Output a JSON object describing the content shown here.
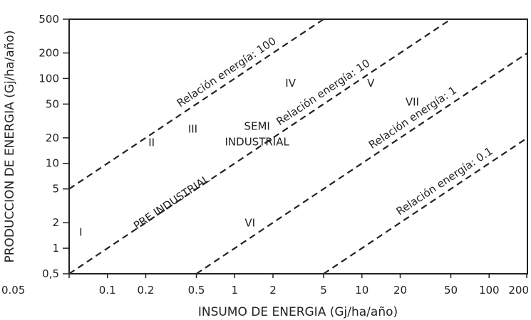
{
  "chart_data": {
    "type": "line",
    "xlabel": "INSUMO DE ENERGIA (Gj/ha/año)",
    "ylabel": "PRODUCCION DE ENERGIA (Gj/ha/año)",
    "x_scale": "log",
    "y_scale": "log",
    "xlim": [
      0.05,
      200
    ],
    "ylim": [
      0.5,
      500
    ],
    "x_ticks": [
      0.05,
      0.1,
      0.2,
      0.5,
      1,
      2,
      5,
      10,
      20,
      50,
      100,
      200
    ],
    "x_tick_labels": [
      "0.05",
      "0.1",
      "0.2",
      "0.5",
      "1",
      "2",
      "5",
      "10",
      "20",
      "50",
      "100",
      "200"
    ],
    "y_ticks": [
      0.5,
      1,
      2,
      5,
      10,
      20,
      50,
      100,
      200,
      500
    ],
    "y_tick_labels": [
      "0,5",
      "1",
      "2",
      "5",
      "10",
      "20",
      "50",
      "100",
      "200",
      "500"
    ],
    "grid": false,
    "series": [
      {
        "name": "Relación energía: 100",
        "ratio": 100,
        "style": "dashed",
        "x": [
          0.05,
          5
        ],
        "y": [
          5,
          500
        ]
      },
      {
        "name": "Relación energía: 10",
        "ratio": 10,
        "style": "dashed",
        "x": [
          0.05,
          50
        ],
        "y": [
          0.5,
          500
        ]
      },
      {
        "name": "Relación energía: 1",
        "ratio": 1,
        "style": "dashed",
        "x": [
          0.5,
          200
        ],
        "y": [
          0.5,
          200
        ]
      },
      {
        "name": "Relación energía: 0.1",
        "ratio": 0.1,
        "style": "dashed",
        "x": [
          5,
          200
        ],
        "y": [
          0.5,
          20
        ]
      }
    ],
    "annotations": [
      {
        "id": "region-I",
        "lines": [
          "I"
        ],
        "x": 0.06,
        "y": 1.4
      },
      {
        "id": "region-II",
        "lines": [
          "II"
        ],
        "x": 0.21,
        "y": 16
      },
      {
        "id": "region-III",
        "lines": [
          "III"
        ],
        "x": 0.43,
        "y": 23
      },
      {
        "id": "region-IV",
        "lines": [
          "IV"
        ],
        "x": 2.5,
        "y": 80
      },
      {
        "id": "region-V",
        "lines": [
          "V"
        ],
        "x": 11,
        "y": 80
      },
      {
        "id": "region-VI",
        "lines": [
          "VI"
        ],
        "x": 1.2,
        "y": 1.8
      },
      {
        "id": "region-VII",
        "lines": [
          "VII"
        ],
        "x": 22,
        "y": 48
      },
      {
        "id": "semi-industrial",
        "lines": [
          "SEMI",
          "INDUSTRIAL"
        ],
        "x": 1.5,
        "y": 25
      },
      {
        "id": "pre-industrial",
        "lines": [
          "PRE INDUSTRIAL"
        ],
        "x": 0.17,
        "y": 1.65,
        "rotate_with_ratio": 10
      }
    ]
  }
}
